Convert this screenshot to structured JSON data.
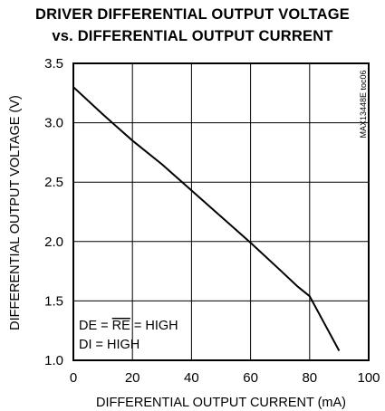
{
  "chart_data": {
    "type": "line",
    "title": "DRIVER DIFFERENTIAL OUTPUT VOLTAGE",
    "subtitle": "vs. DIFFERENTIAL OUTPUT CURRENT",
    "xlabel": "DIFFERENTIAL OUTPUT CURRENT (mA)",
    "ylabel": "DIFFERENTIAL OUTPUT VOLTAGE (V)",
    "xlim": [
      0,
      100
    ],
    "ylim": [
      1.0,
      3.5
    ],
    "xticks": [
      0,
      20,
      40,
      60,
      80,
      100
    ],
    "yticks": [
      1.0,
      1.5,
      2.0,
      2.5,
      3.0,
      3.5
    ],
    "xtick_labels": [
      "0",
      "20",
      "40",
      "60",
      "80",
      "100"
    ],
    "ytick_labels": [
      "1.0",
      "1.5",
      "2.0",
      "2.5",
      "3.0",
      "3.5"
    ],
    "grid": true,
    "series": [
      {
        "x": [
          0,
          10,
          20,
          30,
          40,
          50,
          60,
          70,
          76,
          80,
          85,
          90
        ],
        "y": [
          3.3,
          3.07,
          2.85,
          2.65,
          2.43,
          2.21,
          1.99,
          1.76,
          1.62,
          1.54,
          1.31,
          1.08
        ]
      }
    ],
    "annotations": {
      "condition_line1_prefix": "DE = ",
      "condition_line1_overbar": "RE",
      "condition_line1_suffix": " = HIGH",
      "condition_line2": "DI = HIGH",
      "side_code": "MAX13448E toc06"
    }
  }
}
